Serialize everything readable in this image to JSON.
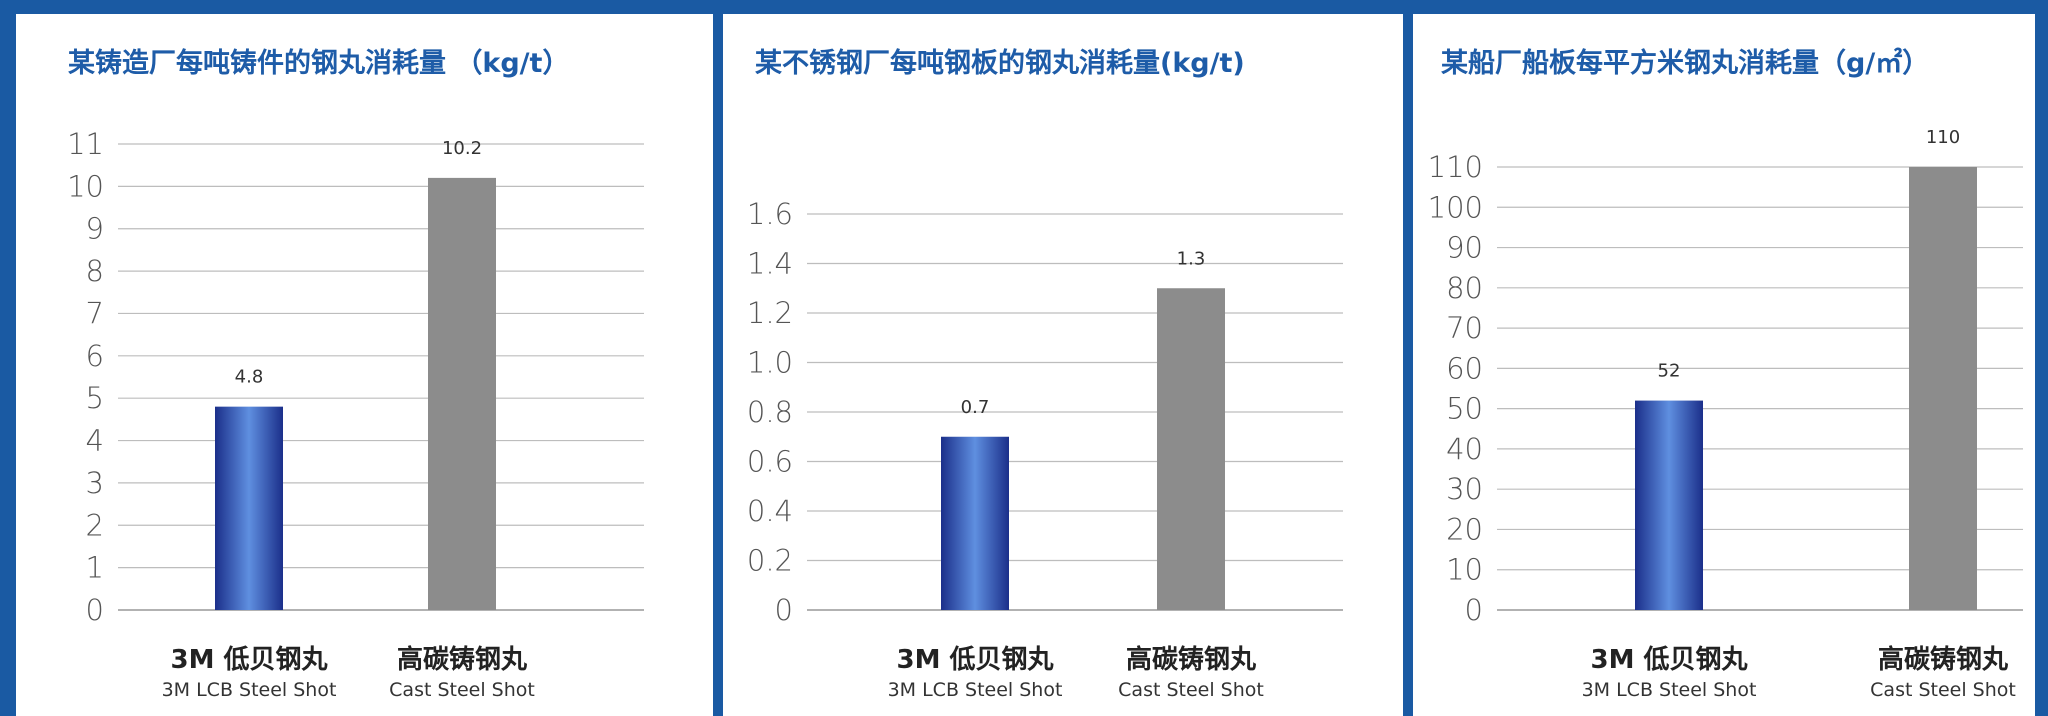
{
  "chart_data": [
    {
      "type": "bar",
      "title": "某铸造厂每吨铸件的钢丸消耗量 （kg/t）",
      "categories": [
        "3M 低贝钢丸",
        "高碳铸钢丸"
      ],
      "category_subtitles": [
        "3M LCB Steel Shot",
        "Cast Steel Shot"
      ],
      "values": [
        4.8,
        10.2
      ],
      "data_labels": [
        "4.8",
        "10.2"
      ],
      "ylim": [
        0,
        11
      ],
      "yticks": [
        "0",
        "1",
        "2",
        "3",
        "4",
        "5",
        "6",
        "7",
        "8",
        "9",
        "10",
        "11"
      ],
      "grid": true
    },
    {
      "type": "bar",
      "title": "某不锈钢厂每吨钢板的钢丸消耗量(kg/t)",
      "categories": [
        "3M 低贝钢丸",
        "高碳铸钢丸"
      ],
      "category_subtitles": [
        "3M LCB Steel Shot",
        "Cast Steel Shot"
      ],
      "values": [
        0.7,
        1.3
      ],
      "data_labels": [
        "0.7",
        "1.3"
      ],
      "ylim": [
        0,
        1.6
      ],
      "yticks": [
        "0",
        "0.2",
        "0.4",
        "0.6",
        "0.8",
        "1.0",
        "1.2",
        "1.4",
        "1.6"
      ],
      "grid": true
    },
    {
      "type": "bar",
      "title": "某船厂船板每平方米钢丸消耗量（g/㎡）",
      "categories": [
        "3M 低贝钢丸",
        "高碳铸钢丸"
      ],
      "category_subtitles": [
        "3M LCB Steel Shot",
        "Cast Steel Shot"
      ],
      "values": [
        52,
        110
      ],
      "data_labels": [
        "52",
        "110"
      ],
      "ylim": [
        0,
        110
      ],
      "yticks": [
        "0",
        "10",
        "20",
        "30",
        "40",
        "50",
        "60",
        "70",
        "80",
        "90",
        "100",
        "110"
      ],
      "grid": true
    }
  ],
  "colors": {
    "frame": "#1a5aa3",
    "title": "#1e5ca8",
    "bar_3m_edge": "#1b2f8a",
    "bar_3m_center": "#5f8fe0",
    "bar_cast": "#8c8c8c"
  }
}
